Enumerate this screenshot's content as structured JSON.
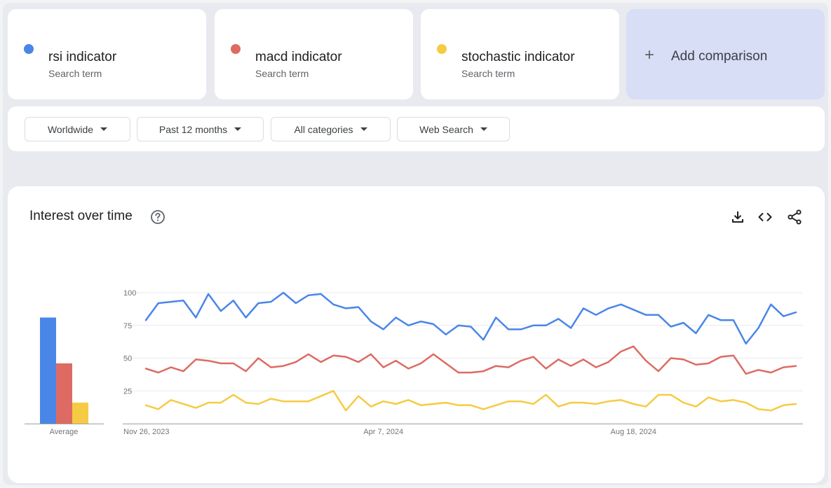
{
  "terms": [
    {
      "name": "rsi indicator",
      "sub": "Search term",
      "color": "#4a86e8"
    },
    {
      "name": "macd indicator",
      "sub": "Search term",
      "color": "#dd6b63"
    },
    {
      "name": "stochastic indicator",
      "sub": "Search term",
      "color": "#f6cb44"
    }
  ],
  "add_comparison": {
    "label": "Add comparison",
    "icon": "plus-icon"
  },
  "filters": [
    {
      "label": "Worldwide"
    },
    {
      "label": "Past 12 months"
    },
    {
      "label": "All categories"
    },
    {
      "label": "Web Search"
    }
  ],
  "chart": {
    "title": "Interest over time",
    "icons": [
      "help-icon",
      "download-icon",
      "embed-icon",
      "share-icon"
    ]
  },
  "chart_data": [
    {
      "type": "bar",
      "categories": [
        "rsi indicator",
        "macd indicator",
        "stochastic indicator"
      ],
      "values": [
        81,
        46,
        16
      ],
      "xlabel": "Average",
      "ylim": [
        0,
        100
      ],
      "colors": [
        "#4a86e8",
        "#dd6b63",
        "#f6cb44"
      ]
    },
    {
      "type": "line",
      "x_tick_labels": [
        "Nov 26, 2023",
        "Apr 7, 2024",
        "Aug 18, 2024"
      ],
      "y_tick_labels": [
        "100",
        "75",
        "50",
        "25"
      ],
      "ylim": [
        0,
        100
      ],
      "grid": true,
      "series": [
        {
          "name": "rsi indicator",
          "color": "#4a86e8",
          "values": [
            79,
            92,
            93,
            94,
            81,
            99,
            86,
            94,
            81,
            92,
            93,
            100,
            92,
            98,
            99,
            91,
            88,
            89,
            78,
            72,
            81,
            75,
            78,
            76,
            68,
            75,
            74,
            64,
            81,
            72,
            72,
            75,
            75,
            80,
            73,
            88,
            83,
            88,
            91,
            87,
            83,
            83,
            74,
            77,
            69,
            83,
            79,
            79,
            61,
            73,
            91,
            82,
            85
          ]
        },
        {
          "name": "macd indicator",
          "color": "#dd6b63",
          "values": [
            42,
            39,
            43,
            40,
            49,
            48,
            46,
            46,
            40,
            50,
            43,
            44,
            47,
            53,
            47,
            52,
            51,
            47,
            53,
            43,
            48,
            42,
            46,
            53,
            46,
            39,
            39,
            40,
            44,
            43,
            48,
            51,
            42,
            49,
            44,
            49,
            43,
            47,
            55,
            59,
            48,
            40,
            50,
            49,
            45,
            46,
            51,
            52,
            38,
            41,
            39,
            43,
            44
          ]
        },
        {
          "name": "stochastic indicator",
          "color": "#f6cb44",
          "values": [
            14,
            11,
            18,
            15,
            12,
            16,
            16,
            22,
            16,
            15,
            19,
            17,
            17,
            17,
            21,
            25,
            10,
            21,
            13,
            17,
            15,
            18,
            14,
            15,
            16,
            14,
            14,
            11,
            14,
            17,
            17,
            15,
            22,
            13,
            16,
            16,
            15,
            17,
            18,
            15,
            13,
            22,
            22,
            16,
            13,
            20,
            17,
            18,
            16,
            11,
            10,
            14,
            15
          ]
        }
      ]
    }
  ]
}
